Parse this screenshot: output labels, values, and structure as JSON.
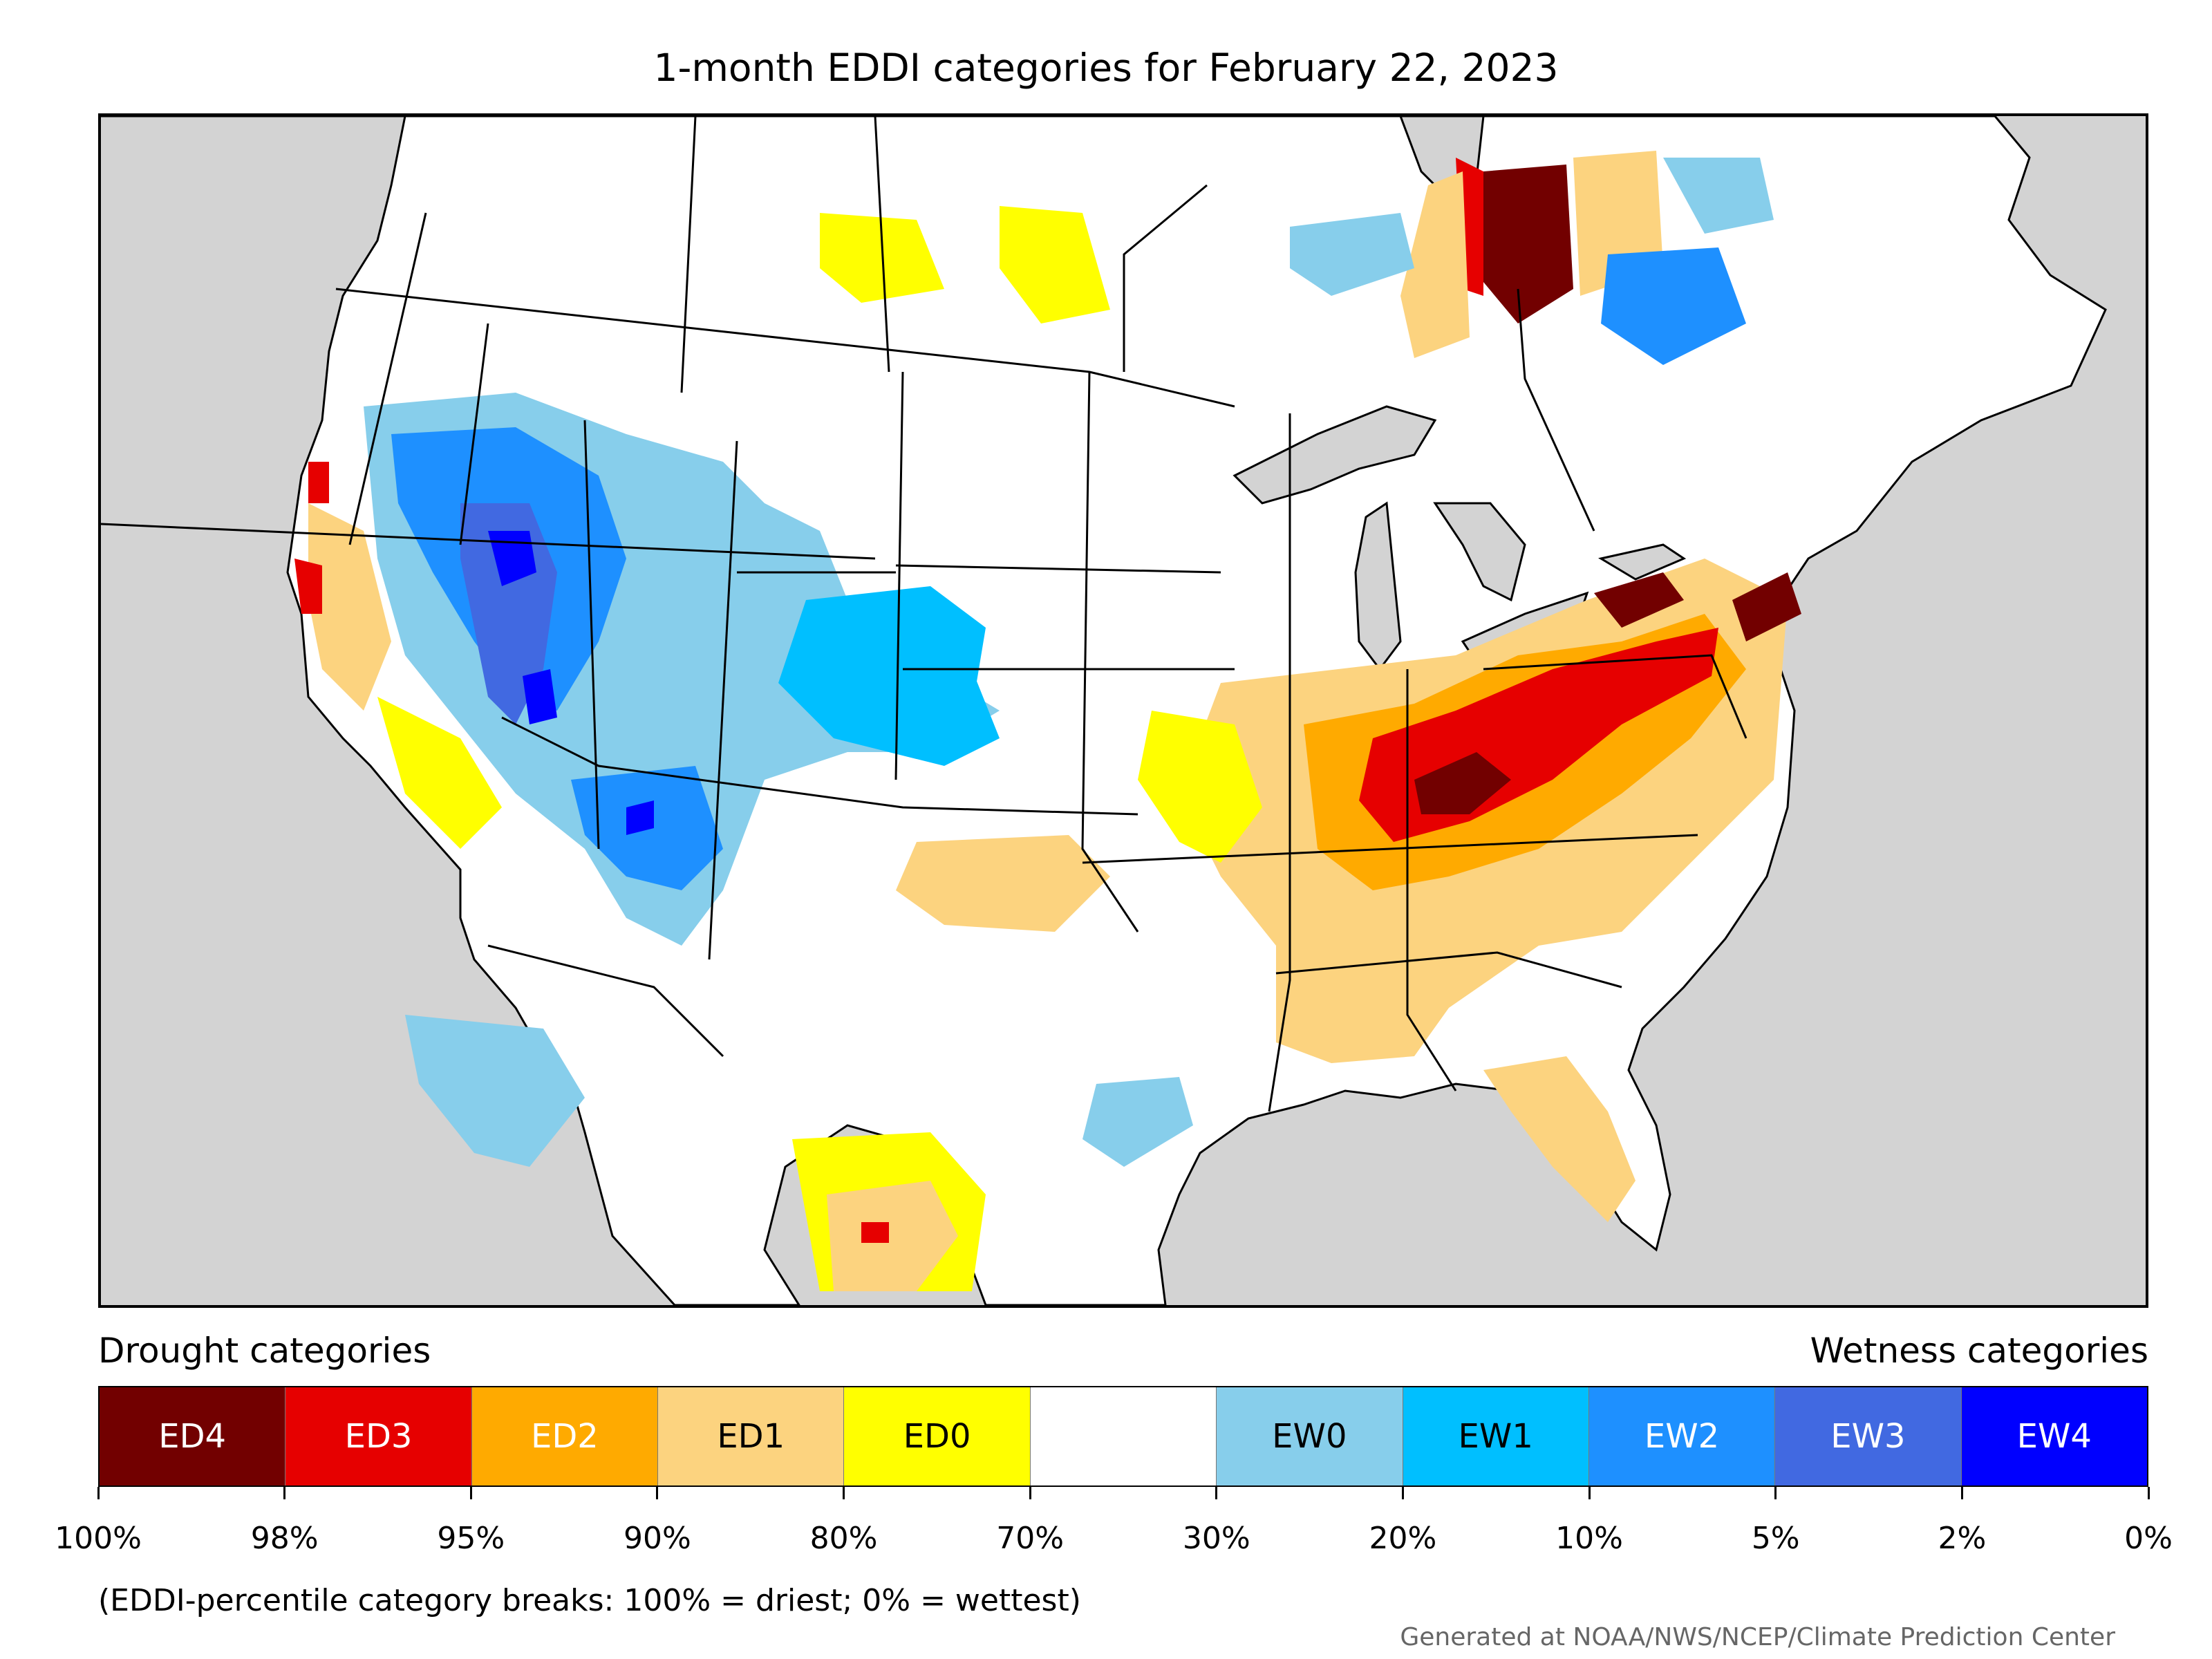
{
  "title": "1-month EDDI categories for February 22, 2023",
  "legend": {
    "drought_heading": "Drought categories",
    "wetness_heading": "Wetness categories",
    "categories": [
      {
        "label": "ED4",
        "color": "#720000",
        "text_color": "#ffffff"
      },
      {
        "label": "ED3",
        "color": "#e60000",
        "text_color": "#ffffff"
      },
      {
        "label": "ED2",
        "color": "#ffaa00",
        "text_color": "#ffffff"
      },
      {
        "label": "ED1",
        "color": "#fcd37f",
        "text_color": "#000000"
      },
      {
        "label": "ED0",
        "color": "#ffff00",
        "text_color": "#000000"
      },
      {
        "label": "",
        "color": "#ffffff",
        "text_color": "#000000"
      },
      {
        "label": "EW0",
        "color": "#87ceeb",
        "text_color": "#000000"
      },
      {
        "label": "EW1",
        "color": "#00bfff",
        "text_color": "#000000"
      },
      {
        "label": "EW2",
        "color": "#1e90ff",
        "text_color": "#ffffff"
      },
      {
        "label": "EW3",
        "color": "#4169e1",
        "text_color": "#ffffff"
      },
      {
        "label": "EW4",
        "color": "#0000ff",
        "text_color": "#ffffff"
      }
    ],
    "ticks": [
      "100%",
      "98%",
      "95%",
      "90%",
      "80%",
      "70%",
      "30%",
      "20%",
      "10%",
      "5%",
      "2%",
      "0%"
    ]
  },
  "note": "(EDDI-percentile category breaks: 100% = driest; 0% = wettest)",
  "credit": "Generated at NOAA/NWS/NCEP/Climate Prediction Center",
  "map_colors": {
    "background": "#d3d3d3",
    "land": "#ffffff",
    "borders": "#000000"
  }
}
